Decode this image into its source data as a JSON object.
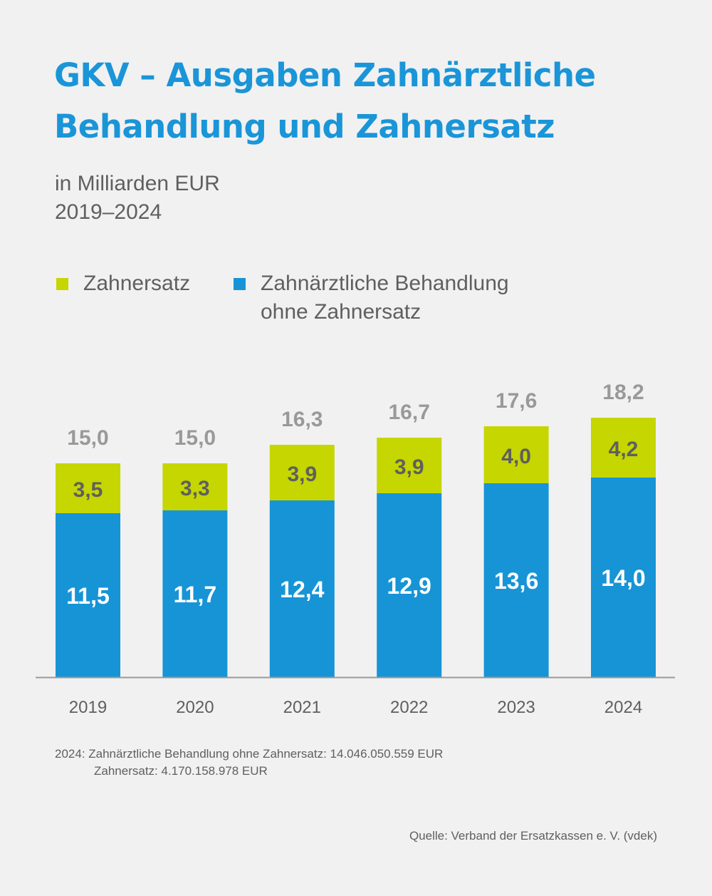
{
  "title_lines": [
    "GKV – Ausgaben Zahnärztliche",
    "Behandlung und Zahnersatz"
  ],
  "subtitle_lines": [
    "in Milliarden EUR",
    "2019–2024"
  ],
  "legend": [
    {
      "label": "Zahnersatz",
      "color": "#c5d600"
    },
    {
      "label_lines": [
        "Zahnärztliche Behandlung",
        "ohne Zahnersatz"
      ],
      "color": "#1794d6"
    }
  ],
  "colors": {
    "title": "#1a95d8",
    "text": "#5f5f5f",
    "total_label": "#999999",
    "segment_label_top": "#5f5f5f",
    "segment_label_bottom": "#ffffff",
    "axis": "#9a9a9a",
    "zahnersatz": "#c5d600",
    "behandlung": "#1794d6"
  },
  "chart_data": {
    "type": "bar",
    "stacked": true,
    "title": "GKV – Ausgaben Zahnärztliche Behandlung und Zahnersatz",
    "subtitle": "in Milliarden EUR, 2019–2024",
    "xlabel": "",
    "ylabel": "Milliarden EUR",
    "ylim": [
      0,
      19
    ],
    "grid": false,
    "legend_position": "top-left",
    "categories": [
      "2019",
      "2020",
      "2021",
      "2022",
      "2023",
      "2024"
    ],
    "series": [
      {
        "name": "Zahnärztliche Behandlung ohne Zahnersatz",
        "values": [
          11.5,
          11.7,
          12.4,
          12.9,
          13.6,
          14.0
        ],
        "labels": [
          "11,5",
          "11,7",
          "12,4",
          "12,9",
          "13,6",
          "14,0"
        ],
        "color": "#1794d6"
      },
      {
        "name": "Zahnersatz",
        "values": [
          3.5,
          3.3,
          3.9,
          3.9,
          4.0,
          4.2
        ],
        "labels": [
          "3,5",
          "3,3",
          "3,9",
          "3,9",
          "4,0",
          "4,2"
        ],
        "color": "#c5d600"
      }
    ],
    "totals": [
      15.0,
      15.0,
      16.3,
      16.7,
      17.6,
      18.2
    ],
    "total_labels": [
      "15,0",
      "15,0",
      "16,3",
      "16,7",
      "17,6",
      "18,2"
    ]
  },
  "note": {
    "line1": "2024: Zahnärztliche Behandlung ohne Zahnersatz: 14.046.050.559 EUR",
    "line2": "Zahnersatz: 4.170.158.978 EUR"
  },
  "source": "Quelle: Verband der Ersatzkassen e. V. (vdek)"
}
